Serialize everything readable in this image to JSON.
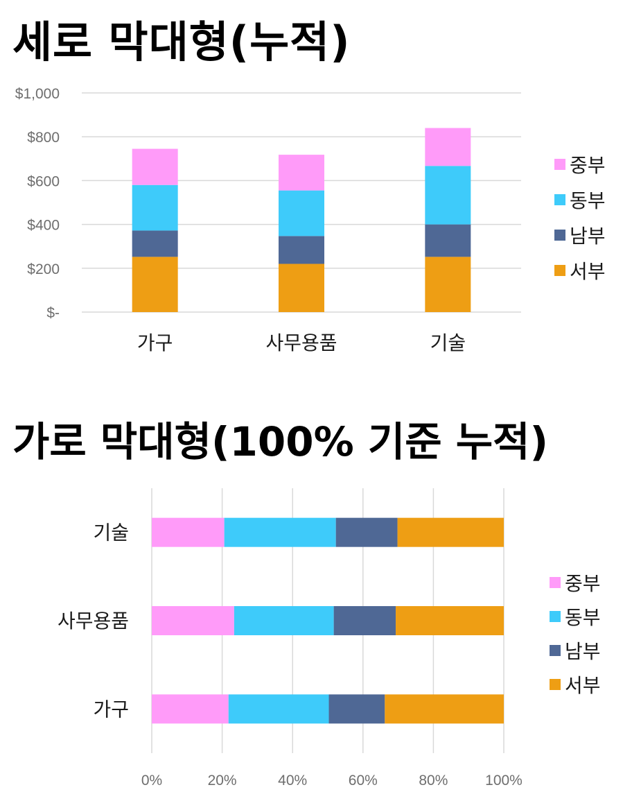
{
  "colors": {
    "중부": "#FF9BF9",
    "동부": "#3ECBFA",
    "남부": "#4F6895",
    "서부": "#EE9E14",
    "grid": "#D9D9D9",
    "axis_text": "#6E6E6E"
  },
  "chart_data": [
    {
      "type": "bar",
      "orientation": "vertical",
      "stacked": true,
      "title": "세로 막대형(누적)",
      "categories": [
        "가구",
        "사무용품",
        "기술"
      ],
      "series": [
        {
          "name": "서부",
          "values": [
            252,
            220,
            252
          ]
        },
        {
          "name": "남부",
          "values": [
            120,
            127,
            148
          ]
        },
        {
          "name": "동부",
          "values": [
            208,
            208,
            267
          ]
        },
        {
          "name": "중부",
          "values": [
            165,
            163,
            173
          ]
        }
      ],
      "ylim": [
        0,
        1000
      ],
      "yticks": [
        0,
        200,
        400,
        600,
        800,
        1000
      ],
      "ytick_labels": [
        "$-",
        "$200",
        "$400",
        "$600",
        "$800",
        "$1,000"
      ],
      "legend": {
        "position": "right",
        "entries": [
          "중부",
          "동부",
          "남부",
          "서부"
        ]
      },
      "grid": true
    },
    {
      "type": "bar",
      "orientation": "horizontal",
      "stacked": true,
      "normalized": true,
      "title": "가로 막대형(100% 기준 누적)",
      "categories": [
        "가구",
        "사무용품",
        "기술"
      ],
      "series": [
        {
          "name": "중부",
          "values": [
            21.8,
            23.4,
            20.6
          ]
        },
        {
          "name": "동부",
          "values": [
            28.5,
            28.3,
            31.7
          ]
        },
        {
          "name": "남부",
          "values": [
            15.9,
            17.6,
            17.5
          ]
        },
        {
          "name": "서부",
          "values": [
            33.8,
            30.7,
            30.2
          ]
        }
      ],
      "xlim": [
        0,
        100
      ],
      "xticks": [
        0,
        20,
        40,
        60,
        80,
        100
      ],
      "xtick_labels": [
        "0%",
        "20%",
        "40%",
        "60%",
        "80%",
        "100%"
      ],
      "legend": {
        "position": "right",
        "entries": [
          "중부",
          "동부",
          "남부",
          "서부"
        ]
      },
      "grid": true
    }
  ]
}
